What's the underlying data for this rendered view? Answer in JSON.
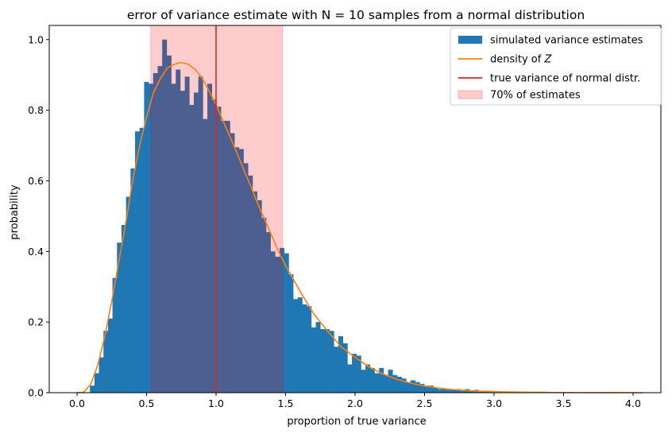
{
  "chart_data": {
    "type": "bar",
    "title": "error of variance estimate with N = 10 samples from a normal distribution",
    "xlabel": "proportion of true variance",
    "ylabel": "probability",
    "xlim": [
      -0.2,
      4.2
    ],
    "ylim": [
      0.0,
      1.04
    ],
    "grid": false,
    "legend_position": "top-right",
    "x_ticks": [
      "0.0",
      "0.5",
      "1.0",
      "1.5",
      "2.0",
      "2.5",
      "3.0",
      "3.5",
      "4.0"
    ],
    "x_tick_values": [
      0.0,
      0.5,
      1.0,
      1.5,
      2.0,
      2.5,
      3.0,
      3.5,
      4.0
    ],
    "y_ticks": [
      "0.0",
      "0.2",
      "0.4",
      "0.6",
      "0.8",
      "1.0"
    ],
    "y_tick_values": [
      0.0,
      0.2,
      0.4,
      0.6,
      0.8,
      1.0
    ],
    "histogram": {
      "name": "simulated variance estimates",
      "color": "#1f77b4",
      "bin_width": 0.0325,
      "bin_starts": [
        0.0925,
        0.125,
        0.1575,
        0.19,
        0.2225,
        0.255,
        0.2875,
        0.32,
        0.3525,
        0.385,
        0.4175,
        0.45,
        0.4825,
        0.515,
        0.5475,
        0.58,
        0.6125,
        0.645,
        0.6775,
        0.71,
        0.7425,
        0.775,
        0.8075,
        0.84,
        0.8725,
        0.905,
        0.9375,
        0.97,
        1.0025,
        1.035,
        1.0675,
        1.1,
        1.1325,
        1.165,
        1.1975,
        1.23,
        1.2625,
        1.295,
        1.3275,
        1.36,
        1.3925,
        1.425,
        1.4575,
        1.49,
        1.5225,
        1.555,
        1.5875,
        1.62,
        1.6525,
        1.685,
        1.7175,
        1.75,
        1.7825,
        1.815,
        1.8475,
        1.88,
        1.9125,
        1.945,
        1.9775,
        2.01,
        2.0425,
        2.075,
        2.1075,
        2.14,
        2.1725,
        2.205,
        2.2375,
        2.27,
        2.3025,
        2.335,
        2.3675,
        2.4,
        2.4325,
        2.465,
        2.4975,
        2.53,
        2.5625,
        2.595,
        2.6275,
        2.66,
        2.6925,
        2.725,
        2.7575,
        2.79,
        2.8225,
        2.855,
        2.8875,
        2.92,
        2.9525,
        2.985,
        3.0175,
        3.05,
        3.0825
      ],
      "values": [
        0.02,
        0.055,
        0.1,
        0.175,
        0.21,
        0.325,
        0.425,
        0.475,
        0.555,
        0.635,
        0.74,
        0.75,
        0.88,
        0.875,
        0.905,
        0.925,
        1.0,
        0.955,
        0.875,
        0.915,
        0.855,
        0.895,
        0.815,
        0.85,
        0.895,
        0.775,
        0.875,
        0.83,
        0.81,
        0.77,
        0.77,
        0.735,
        0.695,
        0.69,
        0.65,
        0.615,
        0.57,
        0.545,
        0.495,
        0.455,
        0.4,
        0.385,
        0.41,
        0.395,
        0.335,
        0.265,
        0.27,
        0.25,
        0.245,
        0.185,
        0.2,
        0.18,
        0.18,
        0.175,
        0.13,
        0.16,
        0.14,
        0.08,
        0.11,
        0.105,
        0.065,
        0.08,
        0.07,
        0.055,
        0.07,
        0.05,
        0.065,
        0.05,
        0.045,
        0.04,
        0.03,
        0.035,
        0.03,
        0.025,
        0.02,
        0.02,
        0.015,
        0.01,
        0.01,
        0.008,
        0.01,
        0.01,
        0.005,
        0.01,
        0.005,
        0.008,
        0.005,
        0.005,
        0.005,
        0.003,
        0.003,
        0.0,
        0.003
      ]
    },
    "density": {
      "name": "density of Z",
      "color": "#ff7f0e",
      "x": [
        0.0,
        0.05,
        0.1,
        0.15,
        0.2,
        0.25,
        0.3,
        0.35,
        0.4,
        0.45,
        0.5,
        0.55,
        0.6,
        0.65,
        0.7,
        0.75,
        0.8,
        0.85,
        0.9,
        0.95,
        1.0,
        1.05,
        1.1,
        1.15,
        1.2,
        1.25,
        1.3,
        1.35,
        1.4,
        1.45,
        1.5,
        1.6,
        1.7,
        1.8,
        1.9,
        2.0,
        2.1,
        2.2,
        2.3,
        2.4,
        2.5,
        2.6,
        2.7,
        2.8,
        2.9,
        3.0,
        3.2,
        3.4,
        3.6,
        3.8,
        4.07
      ],
      "y": [
        0.0,
        0.002,
        0.025,
        0.08,
        0.16,
        0.26,
        0.37,
        0.48,
        0.6,
        0.7,
        0.78,
        0.85,
        0.89,
        0.92,
        0.93,
        0.935,
        0.93,
        0.915,
        0.89,
        0.855,
        0.815,
        0.77,
        0.725,
        0.68,
        0.63,
        0.585,
        0.535,
        0.49,
        0.445,
        0.4,
        0.36,
        0.29,
        0.225,
        0.175,
        0.13,
        0.1,
        0.073,
        0.053,
        0.038,
        0.027,
        0.019,
        0.013,
        0.009,
        0.006,
        0.004,
        0.003,
        0.0015,
        0.0007,
        0.0003,
        0.0001,
        0.0
      ]
    },
    "true_variance_line": {
      "name": "true variance of normal distr.",
      "color": "#d62728",
      "x": 1.0
    },
    "interval": {
      "name": "70% of estimates",
      "color": "#ffb0b0",
      "x_start": 0.53,
      "x_end": 1.48
    },
    "legend": [
      {
        "label": "simulated variance estimates",
        "kind": "patch",
        "color": "#1f77b4"
      },
      {
        "label": "density of",
        "italic_suffix": "Z",
        "kind": "line",
        "color": "#ff7f0e"
      },
      {
        "label": "true variance of normal distr.",
        "kind": "line",
        "color": "#d62728"
      },
      {
        "label": "70% of estimates",
        "kind": "shaded",
        "color": "#ffb0b0"
      }
    ]
  }
}
